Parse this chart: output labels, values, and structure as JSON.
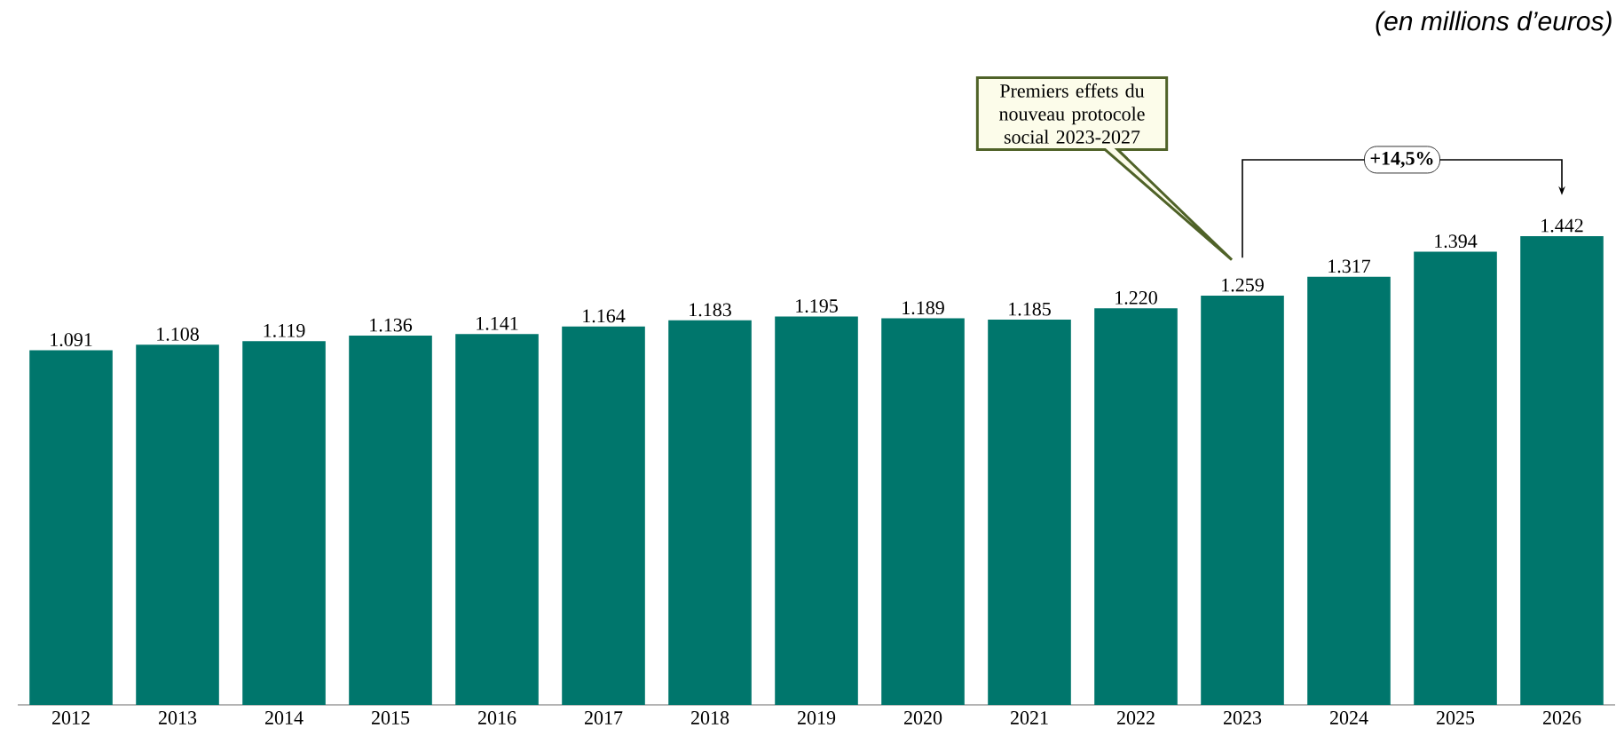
{
  "chart_data": {
    "type": "bar",
    "subtitle": "(en millions d’euros)",
    "categories": [
      "2012",
      "2013",
      "2014",
      "2015",
      "2016",
      "2017",
      "2018",
      "2019",
      "2020",
      "2021",
      "2022",
      "2023",
      "2024",
      "2025",
      "2026"
    ],
    "values": [
      1091,
      1108,
      1119,
      1136,
      1141,
      1164,
      1183,
      1195,
      1189,
      1185,
      1220,
      1259,
      1317,
      1394,
      1442
    ],
    "value_labels": [
      "1.091",
      "1.108",
      "1.119",
      "1.136",
      "1.141",
      "1.164",
      "1.183",
      "1.195",
      "1.189",
      "1.185",
      "1.220",
      "1.259",
      "1.317",
      "1.394",
      "1.442"
    ],
    "color": "#00766c",
    "tick_labels": "x",
    "annotations": [
      "Premiers effets du nouveau protocole social 2023-2027",
      "+14,5%"
    ]
  }
}
